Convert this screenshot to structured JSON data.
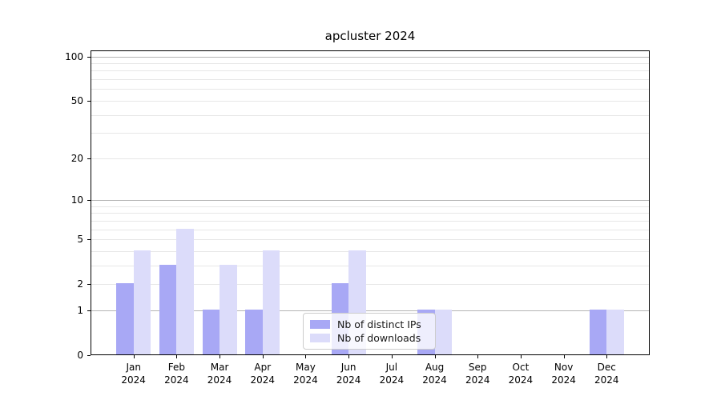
{
  "title": "apcluster 2024",
  "chart_data": {
    "type": "bar",
    "title": "apcluster 2024",
    "xlabel": "",
    "ylabel": "",
    "yscale": "log1p",
    "ylim": [
      0,
      110
    ],
    "grid": true,
    "yticks": [
      0,
      1,
      2,
      5,
      10,
      20,
      50,
      100
    ],
    "emphasized_gridlines": [
      1,
      10,
      100
    ],
    "minor_gridlines": [
      3,
      4,
      6,
      7,
      8,
      9,
      30,
      40,
      60,
      70,
      80,
      90
    ],
    "categories": [
      "Jan",
      "Feb",
      "Mar",
      "Apr",
      "May",
      "Jun",
      "Jul",
      "Aug",
      "Sep",
      "Oct",
      "Nov",
      "Dec"
    ],
    "x_sub_label": "2024",
    "series": [
      {
        "name": "Nb of distinct IPs",
        "color": "#a8a8f5",
        "values": [
          2,
          3,
          1,
          1,
          0,
          2,
          0,
          1,
          0,
          0,
          0,
          1
        ]
      },
      {
        "name": "Nb of downloads",
        "color": "#dcdcfa",
        "values": [
          4,
          6,
          3,
          4,
          0,
          4,
          0,
          1,
          0,
          0,
          0,
          1
        ]
      }
    ],
    "legend_position": "lower center"
  },
  "legend": {
    "entries": [
      "Nb of distinct IPs",
      "Nb of downloads"
    ]
  }
}
